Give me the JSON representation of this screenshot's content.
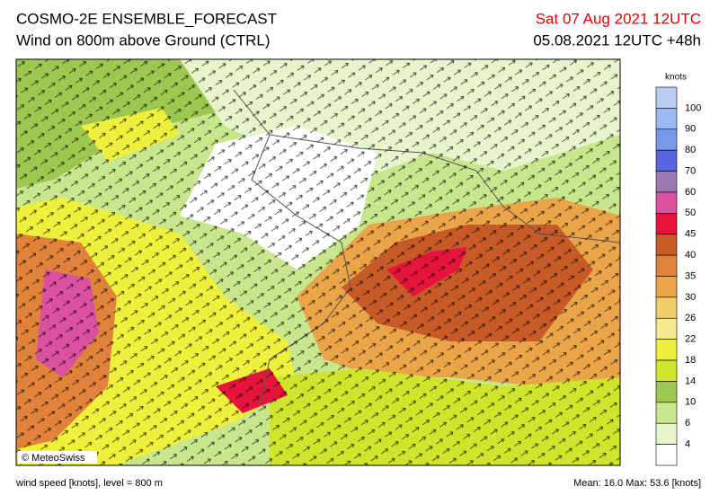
{
  "header": {
    "title": "COSMO-2E ENSEMBLE_FORECAST",
    "subtitle": "Wind on 800m above Ground (CTRL)",
    "valid_time": "Sat 07 Aug 2021 12UTC",
    "run": "05.08.2021 12UTC +48h"
  },
  "colorbar": {
    "unit": "knots",
    "colors": [
      "#b9cdf2",
      "#9cb8f0",
      "#7898e8",
      "#5a64dc",
      "#9b78b4",
      "#dc50a0",
      "#e6143c",
      "#c85a28",
      "#e0823a",
      "#eba448",
      "#f2cc6a",
      "#f6e88e",
      "#eef03c",
      "#cfe42a",
      "#9cc850",
      "#c8e68c",
      "#e8f5cc",
      "#ffffff"
    ],
    "labels": [
      100,
      90,
      80,
      70,
      60,
      50,
      45,
      40,
      35,
      30,
      26,
      22,
      18,
      14,
      10,
      6,
      4
    ]
  },
  "map": {
    "copyright": "© MeteoSwiss"
  },
  "footer": {
    "left": "wind speed [knots], level = 800 m",
    "right": "Mean:  16.0 Max:  53.6 [knots]"
  }
}
